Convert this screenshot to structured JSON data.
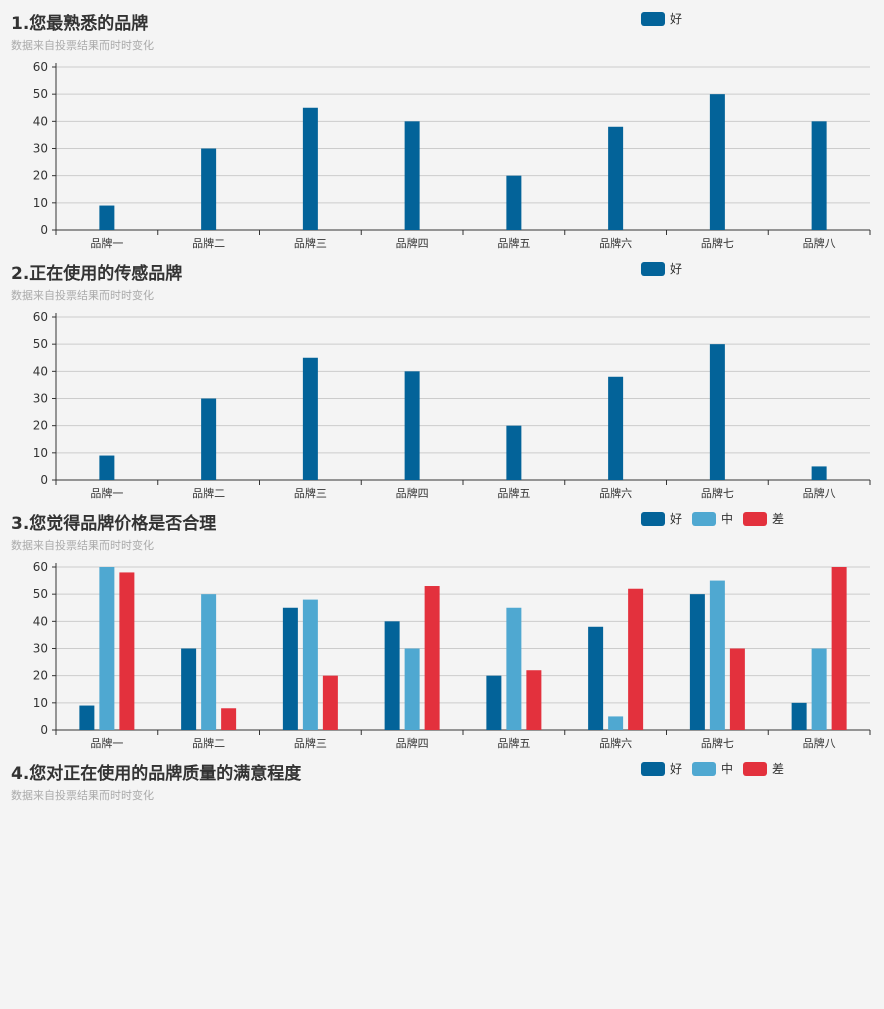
{
  "colors": {
    "good": "#036399",
    "mid": "#4fa8d1",
    "bad": "#e3313d",
    "grid": "#cccccc",
    "axis": "#333333"
  },
  "panels": [
    {
      "title": "1.您最熟悉的品牌",
      "subtitle": "数据来自投票结果而时时变化",
      "legend": [
        "好"
      ]
    },
    {
      "title": "2.正在使用的传感品牌",
      "subtitle": "数据来自投票结果而时时变化",
      "legend": [
        "好"
      ]
    },
    {
      "title": "3.您觉得品牌价格是否合理",
      "subtitle": "数据来自投票结果而时时变化",
      "legend": [
        "好",
        "中",
        "差"
      ]
    },
    {
      "title": "4.您对正在使用的品牌质量的满意程度",
      "subtitle": "数据来自投票结果而时时变化",
      "legend": [
        "好",
        "中",
        "差"
      ]
    }
  ],
  "chart_data": [
    {
      "type": "bar",
      "title": "1.您最熟悉的品牌",
      "categories": [
        "品牌一",
        "品牌二",
        "品牌三",
        "品牌四",
        "品牌五",
        "品牌六",
        "品牌七",
        "品牌八"
      ],
      "series": [
        {
          "name": "好",
          "values": [
            9,
            30,
            45,
            40,
            20,
            38,
            50,
            40
          ]
        }
      ],
      "ylim": [
        0,
        60
      ],
      "yticks": [
        0,
        10,
        20,
        30,
        40,
        50,
        60
      ],
      "grid": true,
      "legend": "top-right"
    },
    {
      "type": "bar",
      "title": "2.正在使用的传感品牌",
      "categories": [
        "品牌一",
        "品牌二",
        "品牌三",
        "品牌四",
        "品牌五",
        "品牌六",
        "品牌七",
        "品牌八"
      ],
      "series": [
        {
          "name": "好",
          "values": [
            9,
            30,
            45,
            40,
            20,
            38,
            50,
            5
          ]
        }
      ],
      "ylim": [
        0,
        60
      ],
      "yticks": [
        0,
        10,
        20,
        30,
        40,
        50,
        60
      ],
      "grid": true,
      "legend": "top-right"
    },
    {
      "type": "bar",
      "title": "3.您觉得品牌价格是否合理",
      "categories": [
        "品牌一",
        "品牌二",
        "品牌三",
        "品牌四",
        "品牌五",
        "品牌六",
        "品牌七",
        "品牌八"
      ],
      "series": [
        {
          "name": "好",
          "values": [
            9,
            30,
            45,
            40,
            20,
            38,
            50,
            10
          ]
        },
        {
          "name": "中",
          "values": [
            60,
            50,
            48,
            30,
            45,
            5,
            55,
            30
          ]
        },
        {
          "name": "差",
          "values": [
            58,
            8,
            20,
            53,
            22,
            52,
            30,
            60
          ]
        }
      ],
      "ylim": [
        0,
        60
      ],
      "yticks": [
        0,
        10,
        20,
        30,
        40,
        50,
        60
      ],
      "grid": true,
      "legend": "top-right"
    }
  ]
}
